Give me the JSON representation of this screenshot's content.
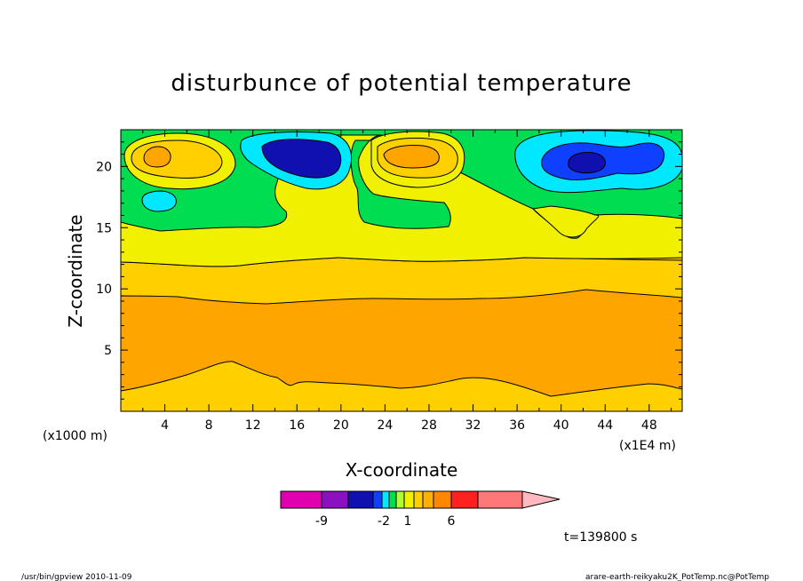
{
  "chart_data": {
    "type": "contour",
    "title": "disturbunce of potential temperature",
    "xlabel": "X-coordinate",
    "ylabel": "Z-coordinate",
    "x_unit_left": "(x1000 m)",
    "x_unit_right": "(x1E4 m)",
    "xlim": [
      0,
      51
    ],
    "ylim": [
      0,
      23
    ],
    "xticks": [
      "4",
      "8",
      "12",
      "16",
      "20",
      "24",
      "28",
      "32",
      "36",
      "40",
      "44",
      "48"
    ],
    "yticks": [
      "5",
      "10",
      "15",
      "20"
    ],
    "colorbar": {
      "colors": [
        "#e000b0",
        "#8a10c0",
        "#1010b0",
        "#1040ff",
        "#00e8ff",
        "#00dd50",
        "#b0ff30",
        "#f0f000",
        "#ffd000",
        "#ffb000",
        "#ff8800",
        "#ff2020",
        "#ff7878",
        "#ffb8c0"
      ],
      "labels": [
        "-9",
        "-2",
        "1",
        "6"
      ]
    },
    "time_label": "t=139800 s"
  },
  "footer": {
    "left": "/usr/bin/gpview   2010-11-09",
    "right": "arare-earth-reikyaku2K_PotTemp.nc@PotTemp"
  }
}
